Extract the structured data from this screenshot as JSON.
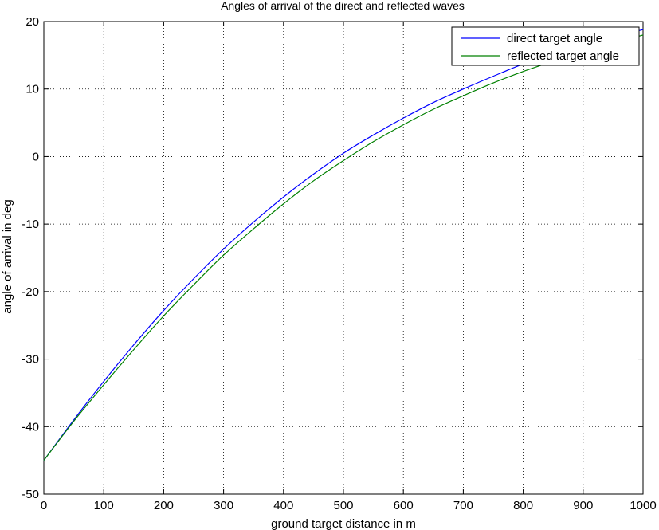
{
  "chart_data": {
    "type": "line",
    "title": "Angles of arrival of the direct and reflected waves",
    "xlabel": "ground target distance in m",
    "ylabel": "angle of arrival in deg",
    "xlim": [
      0,
      1000
    ],
    "ylim": [
      -50,
      20
    ],
    "xticks": [
      0,
      100,
      200,
      300,
      400,
      500,
      600,
      700,
      800,
      900,
      1000
    ],
    "yticks": [
      -50,
      -40,
      -30,
      -20,
      -10,
      0,
      10,
      20
    ],
    "grid": true,
    "legend_position": "top-right",
    "series": [
      {
        "name": "direct target angle",
        "color": "#0000ff",
        "x": [
          0,
          50,
          100,
          150,
          200,
          250,
          300,
          350,
          400,
          450,
          500,
          550,
          600,
          650,
          700,
          750,
          800,
          850,
          900,
          950,
          1000
        ],
        "y": [
          -45,
          -39.0,
          -33.3,
          -27.9,
          -22.8,
          -18.1,
          -13.7,
          -9.7,
          -6.0,
          -2.6,
          0.5,
          3.2,
          5.7,
          8.0,
          10.0,
          11.9,
          13.7,
          15.2,
          16.5,
          17.7,
          18.8
        ]
      },
      {
        "name": "reflected target angle",
        "color": "#008000",
        "x": [
          0,
          50,
          100,
          150,
          200,
          250,
          300,
          350,
          400,
          450,
          500,
          550,
          600,
          650,
          700,
          750,
          800,
          850,
          900,
          950,
          1000
        ],
        "y": [
          -45,
          -39.2,
          -33.8,
          -28.6,
          -23.6,
          -19.0,
          -14.6,
          -10.7,
          -7.0,
          -3.6,
          -0.6,
          2.2,
          4.7,
          7.0,
          9.0,
          10.9,
          12.6,
          14.1,
          15.5,
          16.8,
          18.0
        ]
      }
    ]
  }
}
